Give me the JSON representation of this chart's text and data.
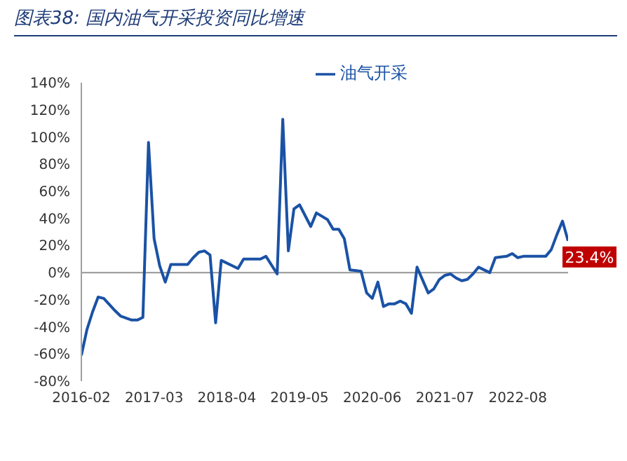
{
  "chart_data": {
    "type": "line",
    "title": "图表38: 国内油气开采投资同比增速",
    "x": [
      "2016-02",
      "2016-03",
      "2016-04",
      "2016-05",
      "2016-06",
      "2016-08",
      "2016-09",
      "2016-11",
      "2016-12",
      "2017-01",
      "2017-02",
      "2017-03",
      "2017-04",
      "2017-05",
      "2017-06",
      "2017-09",
      "2017-10",
      "2017-11",
      "2017-12",
      "2018-01",
      "2018-02",
      "2018-03",
      "2018-06",
      "2018-07",
      "2018-10",
      "2018-11",
      "2019-01",
      "2019-02",
      "2019-03",
      "2019-04",
      "2019-05",
      "2019-07",
      "2019-08",
      "2019-10",
      "2019-11",
      "2019-12",
      "2020-01",
      "2020-02",
      "2020-04",
      "2020-05",
      "2020-06",
      "2020-07",
      "2020-08",
      "2020-09",
      "2020-10",
      "2020-11",
      "2020-12",
      "2021-01",
      "2021-02",
      "2021-04",
      "2021-05",
      "2021-06",
      "2021-07",
      "2021-08",
      "2021-09",
      "2021-10",
      "2021-11",
      "2021-12",
      "2022-01",
      "2022-03",
      "2022-04",
      "2022-06",
      "2022-07",
      "2022-08",
      "2022-09",
      "2022-11",
      "2023-01",
      "2023-02",
      "2023-03",
      "2023-04",
      "2023-05"
    ],
    "series": [
      {
        "name": "油气开采",
        "color": "#1a52a5",
        "values": [
          -61,
          -42,
          -29,
          -18,
          -19,
          -28,
          -32,
          -35,
          -35,
          -33,
          96,
          25,
          5,
          -7,
          6,
          6,
          11,
          15,
          16,
          13,
          -37,
          9,
          3,
          10,
          10,
          12,
          -1,
          113,
          16,
          47,
          50,
          34,
          44,
          39,
          32,
          32,
          25,
          2,
          1,
          -15,
          -19,
          -7,
          -25,
          -23,
          -23,
          -21,
          -23,
          -30,
          4,
          -15,
          -12,
          -5,
          -2,
          -1,
          -4,
          -6,
          -5,
          -1,
          4,
          0,
          11,
          12,
          14,
          11,
          12,
          12,
          12,
          17,
          28,
          38,
          23.4
        ],
        "value_labels": [
          null,
          null,
          null,
          null,
          null,
          null,
          null,
          null,
          null,
          null,
          null,
          null,
          null,
          null,
          null,
          null,
          null,
          null,
          null,
          null,
          null,
          null,
          null,
          null,
          null,
          null,
          null,
          null,
          null,
          null,
          null,
          null,
          null,
          null,
          null,
          null,
          null,
          null,
          null,
          null,
          null,
          null,
          null,
          null,
          null,
          null,
          null,
          null,
          null,
          null,
          null,
          null,
          null,
          null,
          null,
          null,
          null,
          null,
          null,
          null,
          null,
          null,
          null,
          null,
          null,
          null,
          null,
          null,
          null,
          null,
          "23.4%"
        ]
      }
    ],
    "xlim": [
      "2016-02",
      "2023-05"
    ],
    "xticks": [
      "2016-02",
      "2017-03",
      "2018-04",
      "2019-05",
      "2020-06",
      "2021-07",
      "2022-08"
    ],
    "ylim": [
      -80,
      140
    ],
    "yticks": [
      {
        "value": -80,
        "label": "-80%"
      },
      {
        "value": -60,
        "label": "-60%"
      },
      {
        "value": -40,
        "label": "-40%"
      },
      {
        "value": -20,
        "label": "-20%"
      },
      {
        "value": 0,
        "label": "0%"
      },
      {
        "value": 20,
        "label": "20%"
      },
      {
        "value": 40,
        "label": "40%"
      },
      {
        "value": 60,
        "label": "60%"
      },
      {
        "value": 80,
        "label": "80%"
      },
      {
        "value": 100,
        "label": "100%"
      },
      {
        "value": 120,
        "label": "120%"
      },
      {
        "value": 140,
        "label": "140%"
      }
    ],
    "ref_lines": [
      {
        "axis": "y",
        "value": 0,
        "color": "#a0a0a0"
      }
    ],
    "grid": false,
    "legend": "top",
    "marker": "none",
    "line_style": "solid"
  }
}
